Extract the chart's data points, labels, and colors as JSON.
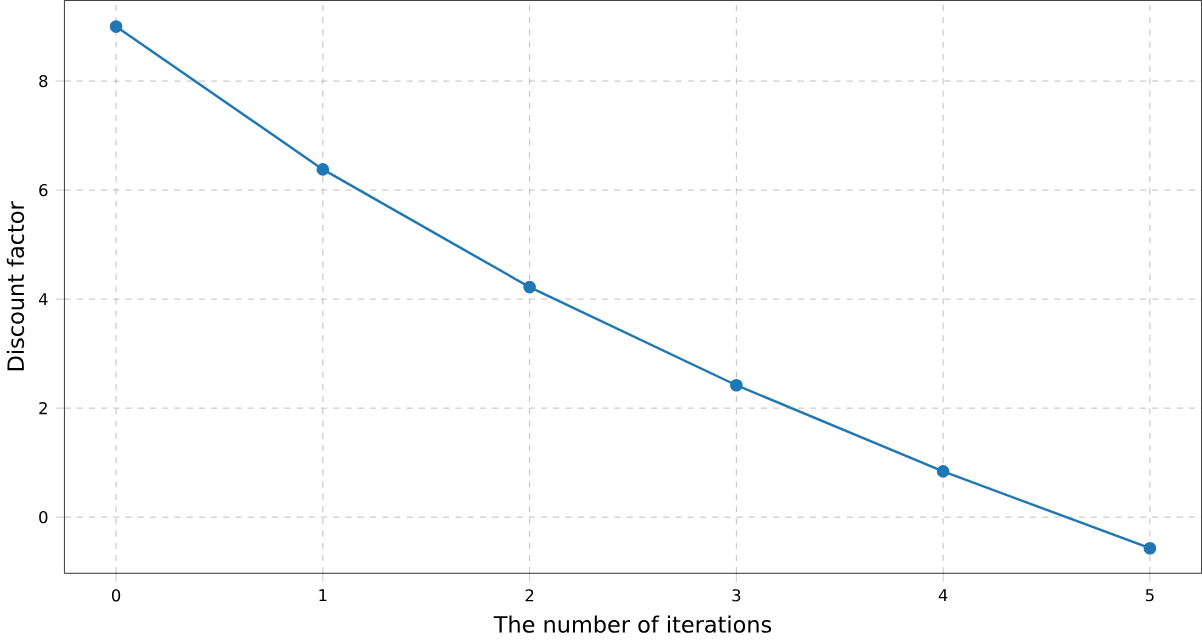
{
  "chart_data": {
    "type": "line",
    "xlabel": "The number of iterations",
    "ylabel": "Discount factor",
    "x": [
      0,
      1,
      2,
      3,
      4,
      5
    ],
    "values": [
      9.0,
      6.38,
      4.22,
      2.42,
      0.84,
      -0.57
    ],
    "color": "#1f77b4",
    "marker": "circle",
    "line_style": "solid",
    "grid": true,
    "xlim": [
      -0.25,
      5.25
    ],
    "ylim": [
      -1.03,
      9.48
    ],
    "xticks": [
      0,
      1,
      2,
      3,
      4,
      5
    ],
    "yticks": [
      0,
      2,
      4,
      6,
      8
    ]
  }
}
